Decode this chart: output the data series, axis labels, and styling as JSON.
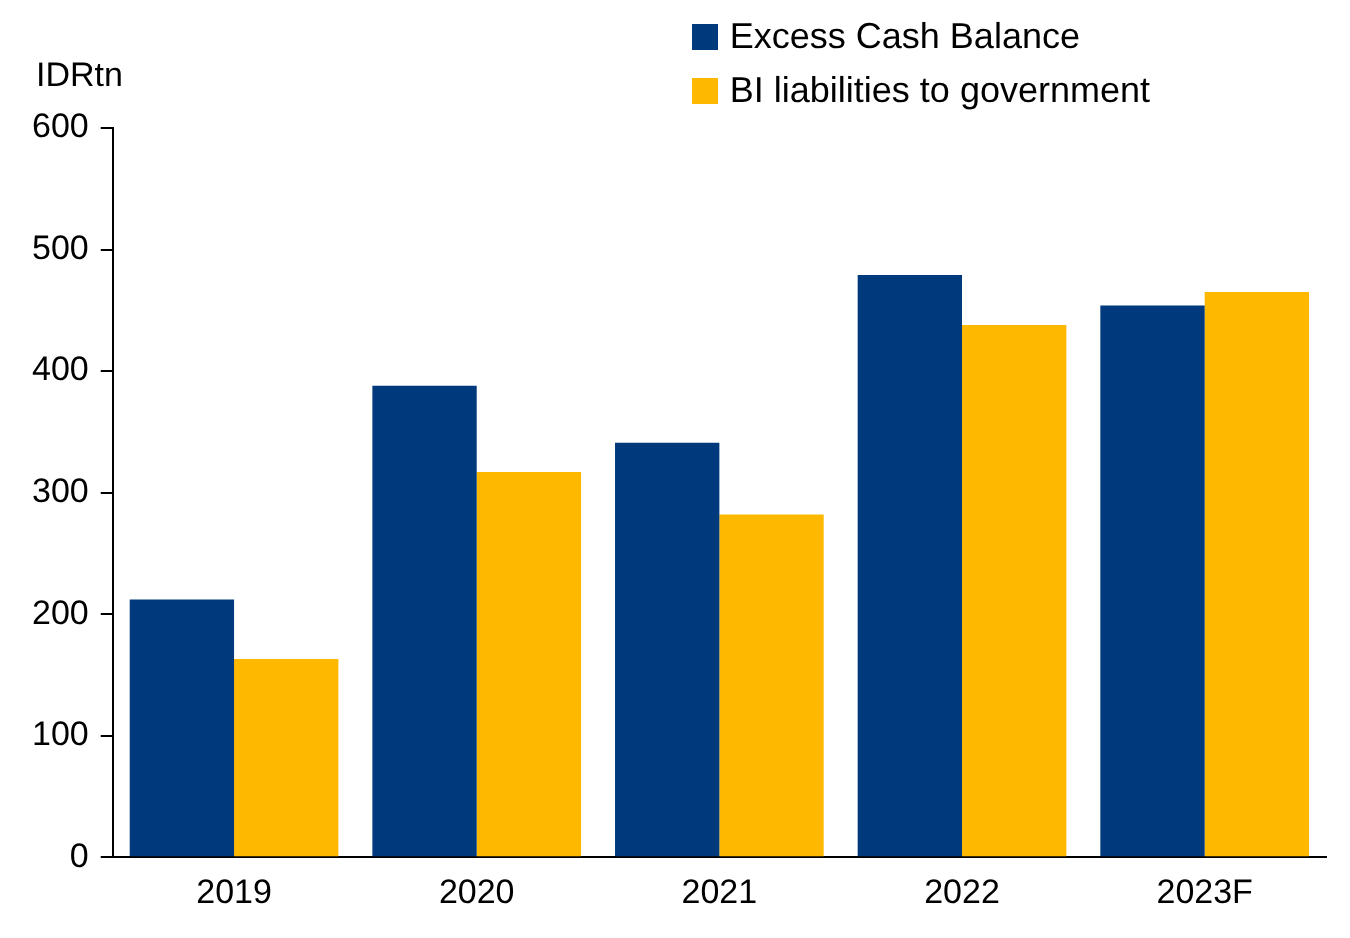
{
  "chart_data": {
    "type": "bar",
    "ylabel": "IDRtn",
    "categories": [
      "2019",
      "2020",
      "2021",
      "2022",
      "2023F"
    ],
    "series": [
      {
        "name": "Excess Cash Balance",
        "color": "#003a7d",
        "values": [
          212,
          388,
          341,
          479,
          454
        ]
      },
      {
        "name": "BI liabilities to government",
        "color": "#ffb800",
        "values": [
          163,
          317,
          282,
          438,
          465
        ]
      }
    ],
    "ylim": [
      0,
      600
    ],
    "yticks": [
      0,
      100,
      200,
      300,
      400,
      500,
      600
    ],
    "grid": false,
    "legend": "top right"
  }
}
